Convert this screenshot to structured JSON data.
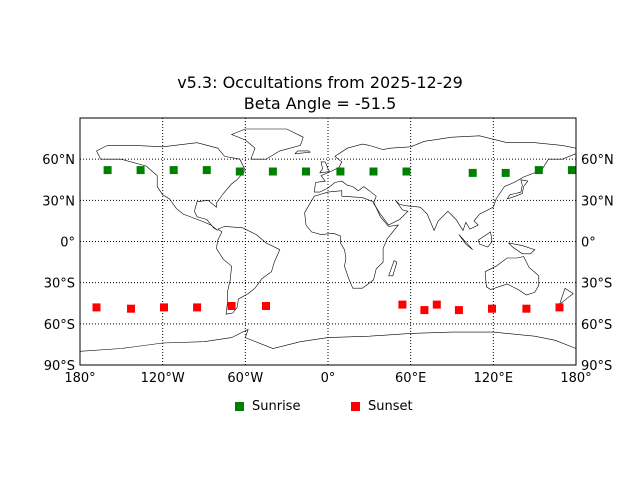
{
  "chart_data": {
    "type": "scatter",
    "title": "v5.3: Occultations from 2025-12-29",
    "subtitle": "Beta Angle = -51.5",
    "xlim": [
      -180,
      180
    ],
    "ylim": [
      -90,
      90
    ],
    "grid": true,
    "grid_style": "dotted",
    "background": "world-map-coastlines",
    "x_ticks": [
      -180,
      -120,
      -60,
      0,
      60,
      120,
      180
    ],
    "x_tick_labels": [
      "180°",
      "120°W",
      "60°W",
      "0°",
      "60°E",
      "120°E",
      "180°"
    ],
    "y_ticks": [
      -90,
      -60,
      -30,
      0,
      30,
      60
    ],
    "y_tick_labels": [
      "90°S",
      "60°S",
      "30°S",
      "0°",
      "30°N",
      "60°N"
    ],
    "legend_position": "bottom-center",
    "series": [
      {
        "name": "Sunrise",
        "color": "#008000",
        "marker": "square",
        "x": [
          -160,
          -136,
          -112,
          -88,
          -64,
          -40,
          -16,
          9,
          33,
          57,
          105,
          129,
          153,
          177
        ],
        "y": [
          52,
          52,
          52,
          52,
          51,
          51,
          51,
          51,
          51,
          51,
          50,
          50,
          52,
          52
        ]
      },
      {
        "name": "Sunset",
        "color": "#ff0000",
        "marker": "square",
        "x": [
          -168,
          -143,
          -119,
          -95,
          -70,
          -45,
          54,
          70,
          79,
          95,
          119,
          144,
          168
        ],
        "y": [
          -48,
          -49,
          -48,
          -48,
          -47,
          -47,
          -46,
          -50,
          -46,
          -50,
          -49,
          -49,
          -48
        ]
      }
    ]
  }
}
